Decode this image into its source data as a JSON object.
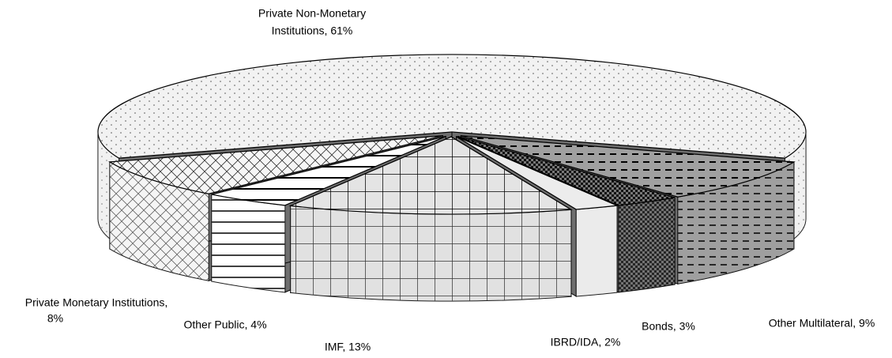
{
  "chart_data": {
    "type": "pie3d",
    "categories": [
      "Private Non-Monetary Institutions",
      "Other Multilateral",
      "Bonds",
      "IBRD/IDA",
      "IMF",
      "Other Public",
      "Private Monetary Institutions"
    ],
    "values": [
      61,
      9,
      3,
      2,
      13,
      4,
      8
    ],
    "value_labels": [
      [
        "Private Non-Monetary",
        "Institutions, 61%"
      ],
      [
        "Other Multilateral, 9%"
      ],
      [
        "Bonds, 3%"
      ],
      [
        "IBRD/IDA, 2%"
      ],
      [
        "IMF, 13%"
      ],
      [
        "Other Public, 4%"
      ],
      [
        "Private Monetary Institutions,",
        "8%"
      ]
    ],
    "colors": [
      "#f0f0f0",
      "#9a9a9a",
      "#666666",
      "#e8e8e8",
      "#d8d8d8",
      "#ffffff",
      "#f4f4f4"
    ]
  }
}
